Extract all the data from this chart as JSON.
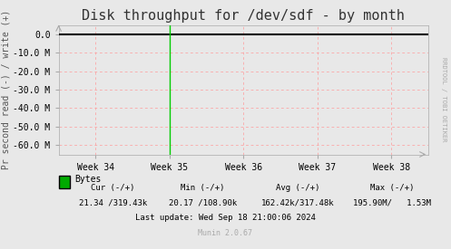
{
  "title": "Disk throughput for /dev/sdf - by month",
  "ylabel": "Pr second read (-) / write (+)",
  "ylim": [
    -65000000,
    5000000
  ],
  "yticks": [
    0,
    -10000000,
    -20000000,
    -30000000,
    -40000000,
    -50000000,
    -60000000
  ],
  "ytick_labels": [
    "0.0",
    "-10.0 M",
    "-20.0 M",
    "-30.0 M",
    "-40.0 M",
    "-50.0 M",
    "-60.0 M"
  ],
  "xtick_labels": [
    "Week 34",
    "Week 35",
    "Week 36",
    "Week 37",
    "Week 38"
  ],
  "bg_color": "#e8e8e8",
  "plot_bg_color": "#e8e8e8",
  "grid_color": "#ff9999",
  "line_color_zero": "#000000",
  "line_color_green": "#00cc00",
  "vertical_line_x": 0.375,
  "legend_label": "Bytes",
  "legend_color": "#00aa00",
  "cur_label": "Cur (-/+)",
  "cur_val": "21.34 /319.43k",
  "min_label": "Min (-/+)",
  "min_val": "20.17 /108.90k",
  "avg_label": "Avg (-/+)",
  "avg_val": "162.42k/317.48k",
  "max_label": "Max (-/+)",
  "max_val": "195.90M/   1.53M",
  "last_update": "Last update: Wed Sep 18 21:00:06 2024",
  "munin_version": "Munin 2.0.67",
  "rrdtool_label": "RRDTOOL / TOBI OETIKER",
  "title_fontsize": 11,
  "axis_fontsize": 7,
  "tick_fontsize": 7,
  "footer_fontsize": 7
}
